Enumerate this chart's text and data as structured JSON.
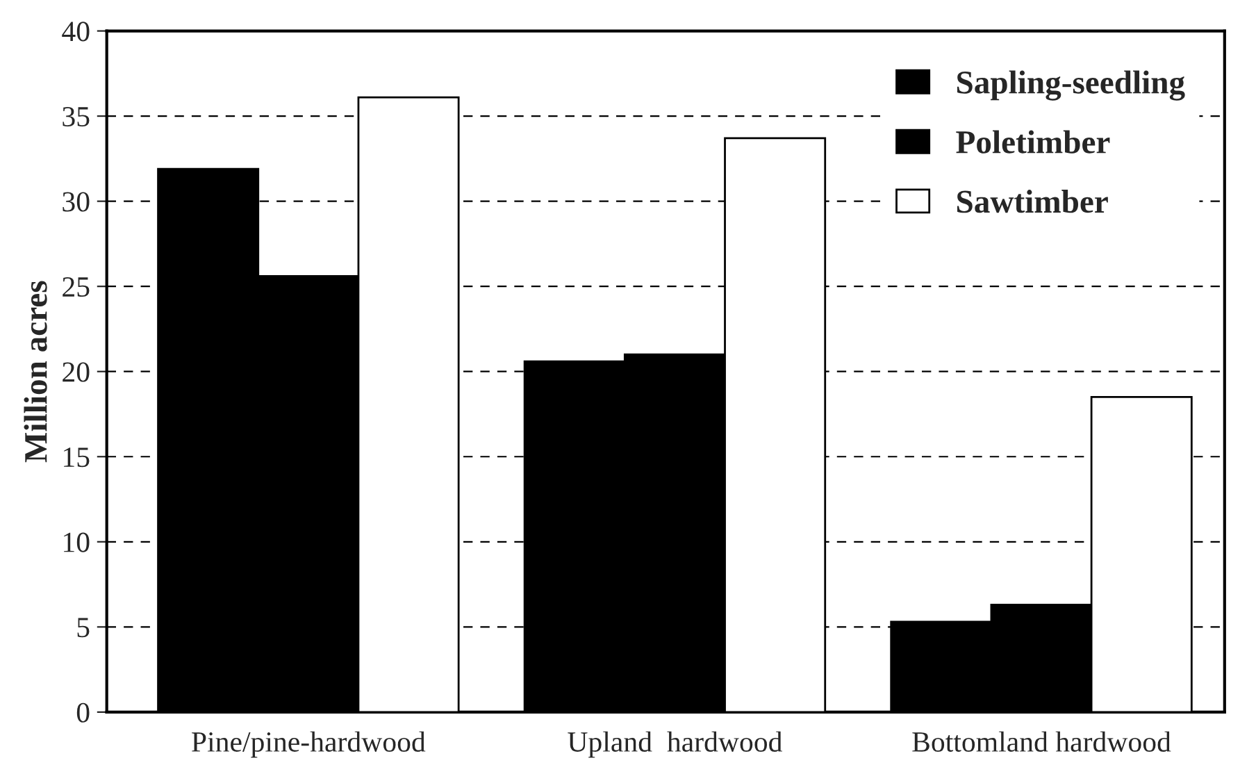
{
  "chart_data": {
    "type": "bar",
    "ylabel": "Million acres",
    "categories": [
      "Pine/pine-hardwood",
      "Upland  hardwood",
      "Bottomland hardwood"
    ],
    "series": [
      {
        "name": "Sapling-seedling",
        "color": "#000000",
        "values": [
          31.9,
          20.6,
          5.3
        ]
      },
      {
        "name": "Poletimber",
        "color": "#000000",
        "values": [
          25.6,
          21.0,
          6.3
        ]
      },
      {
        "name": "Sawtimber",
        "color": "#ffffff",
        "values": [
          36.1,
          33.7,
          18.5
        ]
      }
    ],
    "ylim": [
      0,
      40
    ],
    "yticks": [
      0,
      5,
      10,
      15,
      20,
      25,
      30,
      35,
      40
    ],
    "grid": "y",
    "legend": "top right"
  }
}
